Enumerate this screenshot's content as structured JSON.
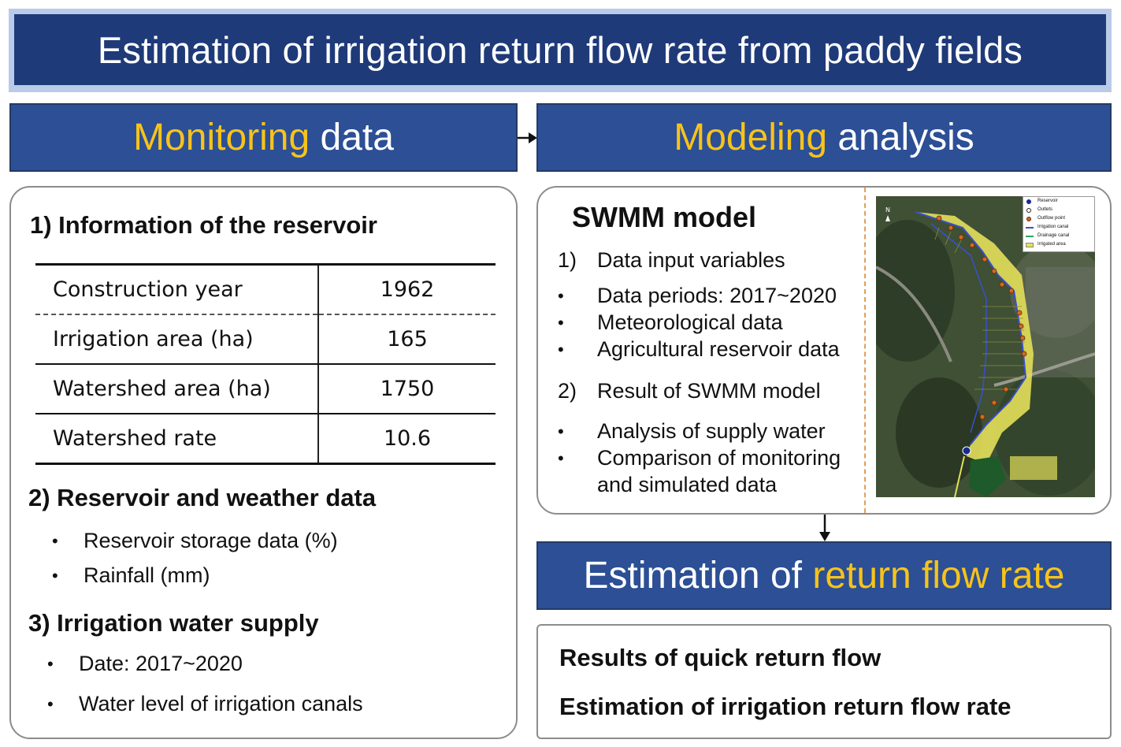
{
  "title": "Estimation of irrigation return flow rate from paddy fields",
  "monitoring": {
    "header_highlight": "Monitoring",
    "header_rest": " data",
    "section1_title": "1) Information of the reservoir",
    "table": [
      {
        "label": "Construction year",
        "value": "1962"
      },
      {
        "label": "Irrigation area (ha)",
        "value": "165"
      },
      {
        "label": "Watershed area (ha)",
        "value": "1750"
      },
      {
        "label": "Watershed rate",
        "value": "10.6"
      }
    ],
    "section2_title": "2) Reservoir and weather data",
    "section2_items": [
      "Reservoir storage data (%)",
      "Rainfall (mm)"
    ],
    "section3_title": "3) Irrigation water supply",
    "section3_items": [
      "Date: 2017~2020",
      "Water level of irrigation canals"
    ]
  },
  "modeling": {
    "header_highlight": "Modeling",
    "header_rest": " analysis",
    "model_title": "SWMM model",
    "item1_num": "1)",
    "item1_title": "Data input variables",
    "item1_bullets": [
      "Data periods: 2017~2020",
      "Meteorological data",
      "Agricultural reservoir data"
    ],
    "item2_num": "2)",
    "item2_title": "Result of SWMM model",
    "item2_bullets": [
      "Analysis of supply water",
      "Comparison of monitoring",
      "and simulated data"
    ],
    "legend": [
      "Reservoir",
      "Outlets",
      "Outflow point",
      "Irrigation canal",
      "Drainage canal",
      "Irrigated area"
    ]
  },
  "estimation": {
    "header_prefix": "Estimation of ",
    "header_highlight": "return flow rate",
    "lines": [
      "Results of quick return flow",
      "Estimation of irrigation return flow rate"
    ]
  },
  "colors": {
    "title_bg": "#1f3a78",
    "bar_bg": "#2c4f95",
    "highlight": "#f7c31b",
    "irrigated_area": "#e6e05a",
    "outflow_point": "#d2691e"
  }
}
